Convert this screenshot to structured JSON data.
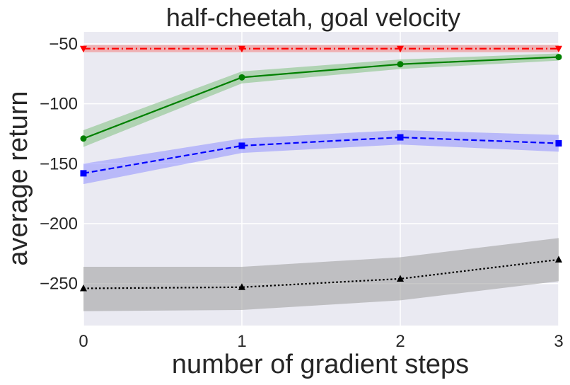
{
  "chart_data": {
    "type": "line",
    "title": "half-cheetah, goal velocity",
    "xlabel": "number of gradient steps",
    "ylabel": "average return",
    "x": [
      0,
      1,
      2,
      3
    ],
    "xlim": [
      0,
      3
    ],
    "ylim": [
      -285,
      -40
    ],
    "xticks": [
      "0",
      "1",
      "2",
      "3"
    ],
    "yticks": [
      "−50",
      "−100",
      "−150",
      "−200",
      "−250"
    ],
    "ytick_values": [
      -50,
      -100,
      -150,
      -200,
      -250
    ],
    "grid": true,
    "background": "#eaeaf2",
    "series": [
      {
        "color": "#ff0000",
        "linestyle": "dashdot",
        "marker": "triangle-down",
        "values": [
          -54,
          -54,
          -54,
          -54
        ],
        "band_low": [
          -57,
          -57,
          -57,
          -57
        ],
        "band_high": [
          -51,
          -51,
          -51,
          -51
        ],
        "band_color": "#f08080"
      },
      {
        "color": "#008000",
        "linestyle": "solid",
        "marker": "circle",
        "values": [
          -129,
          -78,
          -67,
          -61
        ],
        "band_low": [
          -136,
          -83,
          -71,
          -64
        ],
        "band_high": [
          -122,
          -73,
          -63,
          -58
        ],
        "band_color": "#7fbf7f"
      },
      {
        "color": "#0000ff",
        "linestyle": "dashed",
        "marker": "square",
        "values": [
          -158,
          -135,
          -128,
          -133
        ],
        "band_low": [
          -167,
          -141,
          -134,
          -140
        ],
        "band_high": [
          -150,
          -129,
          -122,
          -126
        ],
        "band_color": "#8f8fff"
      },
      {
        "color": "#000000",
        "linestyle": "dotted",
        "marker": "triangle-up",
        "values": [
          -254,
          -253,
          -246,
          -230
        ],
        "band_low": [
          -273,
          -272,
          -264,
          -248
        ],
        "band_high": [
          -236,
          -236,
          -228,
          -212
        ],
        "band_color": "#9a9a9a"
      }
    ]
  }
}
